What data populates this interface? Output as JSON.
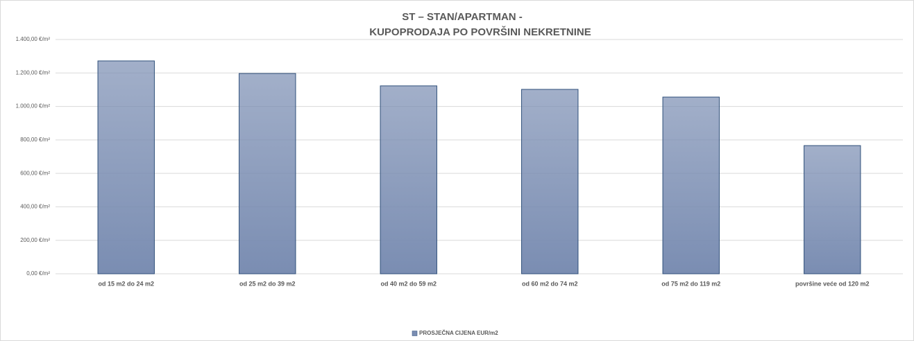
{
  "chart_data": {
    "type": "bar",
    "title": [
      "ST – STAN/APARTMAN -",
      "KUPOPRODAJA PO POVRŠINI NEKRETNINE"
    ],
    "categories": [
      "od 15 m2 do 24 m2",
      "od 25 m2 do 39 m2",
      "od 40 m2 do 59 m2",
      "od 60 m2 do 74 m2",
      "od 75 m2 do 119 m2",
      "površine veće od 120 m2"
    ],
    "series": [
      {
        "name": "PROSJEČNA CIJENA EUR/m2",
        "color": "#7a8db2",
        "values": [
          1272,
          1197,
          1123,
          1102,
          1056,
          766
        ]
      }
    ],
    "ylim": [
      0,
      1400
    ],
    "yticks": [
      {
        "value": 0,
        "label": "0,00 €/m²"
      },
      {
        "value": 200,
        "label": "200,00 €/m²"
      },
      {
        "value": 400,
        "label": "400,00 €/m²"
      },
      {
        "value": 600,
        "label": "600,00 €/m²"
      },
      {
        "value": 800,
        "label": "800,00 €/m²"
      },
      {
        "value": 1000,
        "label": "1.000,00 €/m²"
      },
      {
        "value": 1200,
        "label": "1.200,00 €/m²"
      },
      {
        "value": 1400,
        "label": "1.400,00 €/m²"
      }
    ],
    "grid": true,
    "legend": "bottom"
  }
}
